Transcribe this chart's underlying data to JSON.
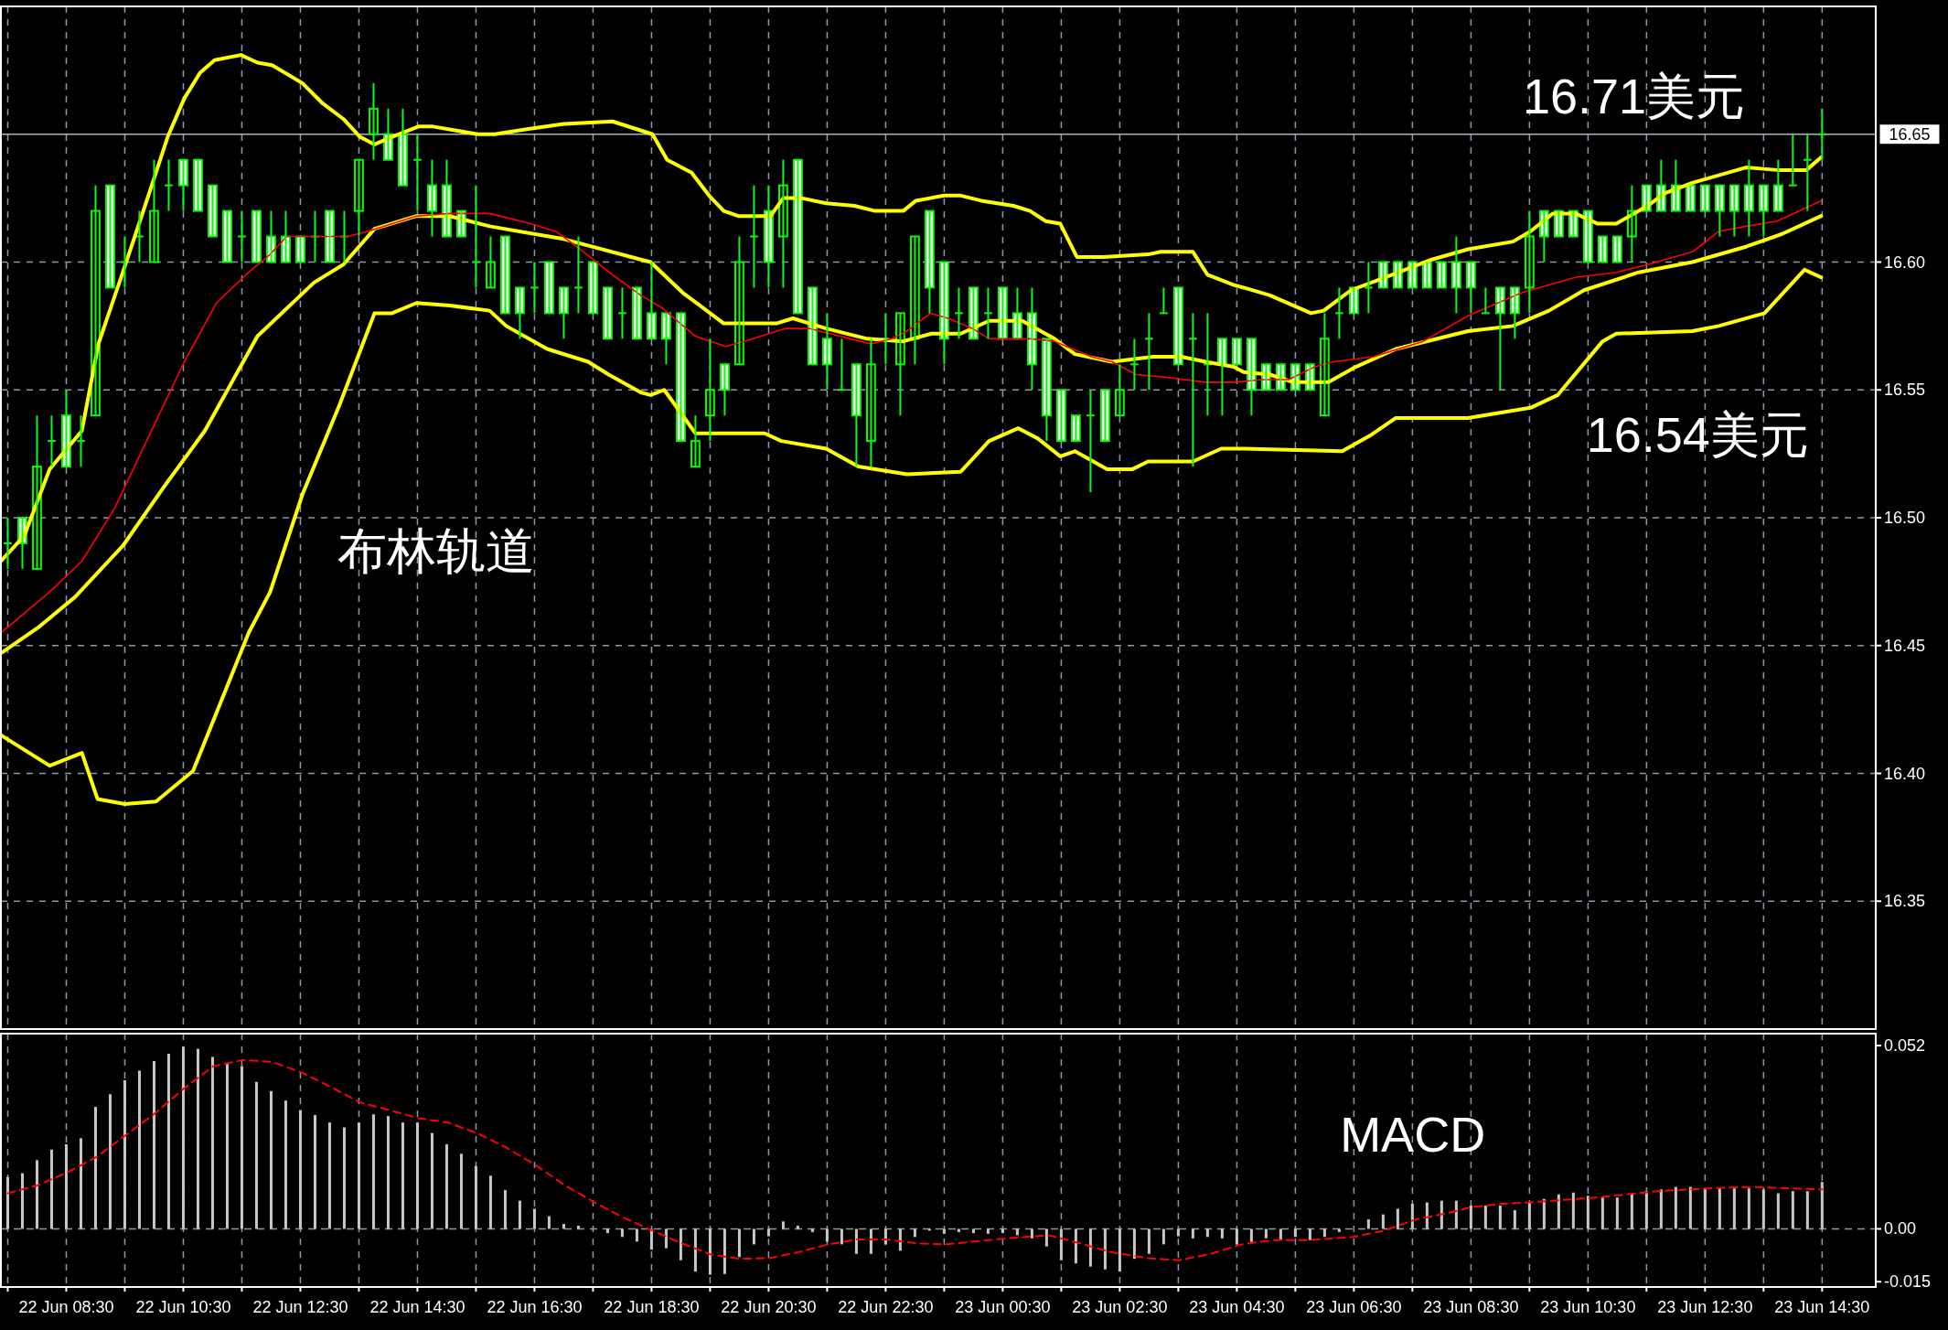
{
  "chart_data": [
    {
      "type": "candlestick",
      "color": "#00ff00",
      "tick_labels": "y",
      "grid": true,
      "xlim": [
        "--06-22T07:23",
        "--06-23T15:25"
      ],
      "ylim": [
        16.3,
        16.7
      ],
      "yticks": [
        16.35,
        {
          "value": 16.4,
          "label": "16.40"
        },
        16.45,
        {
          "value": 16.5,
          "label": "16.50"
        },
        16.55,
        {
          "value": 16.6,
          "label": "16.60"
        }
      ],
      "xticks": [
        "--06-22T07:30",
        "--06-22T08:30",
        "--06-22T09:30",
        "--06-22T10:30",
        "--06-22T11:30",
        "--06-22T12:30",
        "--06-22T13:30",
        "--06-22T14:30",
        "--06-22T15:30",
        "--06-22T16:30",
        "--06-22T17:30",
        "--06-22T18:30",
        "--06-22T19:30",
        "--06-22T20:30",
        "--06-22T21:30",
        "--06-22T22:30",
        "--06-22T23:30",
        "--06-23T00:30",
        "--06-23T01:30",
        "--06-23T02:30",
        "--06-23T03:30",
        "--06-23T04:30",
        "--06-23T05:30",
        "--06-23T06:30",
        "--06-23T07:30",
        "--06-23T08:30",
        "--06-23T09:30",
        "--06-23T10:30",
        "--06-23T11:30",
        "--06-23T12:30",
        "--06-23T13:30",
        "--06-23T14:30"
      ],
      "ref_lines": [
        {
          "axis": "y",
          "value": 16.65,
          "label": "16.65",
          "color": "#a8b4c0",
          "line_style": "solid"
        }
      ],
      "annotations": [
        "布林轨道",
        "16.71美元",
        "16.54美元"
      ],
      "x": [
        "--06-22T07:30",
        "--06-22T07:45",
        "--06-22T08:00",
        "--06-22T08:15",
        "--06-22T08:30",
        "--06-22T08:45",
        "--06-22T09:00",
        "--06-22T09:15",
        "--06-22T09:30",
        "--06-22T09:45",
        "--06-22T10:00",
        "--06-22T10:15",
        "--06-22T10:30",
        "--06-22T10:45",
        "--06-22T11:00",
        "--06-22T11:15",
        "--06-22T11:30",
        "--06-22T11:45",
        "--06-22T12:00",
        "--06-22T12:15",
        "--06-22T12:30",
        "--06-22T12:45",
        "--06-22T13:00",
        "--06-22T13:15",
        "--06-22T13:30",
        "--06-22T13:45",
        "--06-22T14:00",
        "--06-22T14:15",
        "--06-22T14:30",
        "--06-22T14:45",
        "--06-22T15:00",
        "--06-22T15:15",
        "--06-22T15:30",
        "--06-22T15:45",
        "--06-22T16:00",
        "--06-22T16:15",
        "--06-22T16:30",
        "--06-22T16:45",
        "--06-22T17:00",
        "--06-22T17:15",
        "--06-22T17:30",
        "--06-22T17:45",
        "--06-22T18:00",
        "--06-22T18:15",
        "--06-22T18:30",
        "--06-22T18:45",
        "--06-22T19:00",
        "--06-22T19:15",
        "--06-22T19:30",
        "--06-22T19:45",
        "--06-22T20:00",
        "--06-22T20:15",
        "--06-22T20:30",
        "--06-22T20:45",
        "--06-22T21:00",
        "--06-22T21:15",
        "--06-22T21:30",
        "--06-22T21:45",
        "--06-22T22:00",
        "--06-22T22:15",
        "--06-22T22:30",
        "--06-22T22:45",
        "--06-22T23:00",
        "--06-22T23:15",
        "--06-22T23:30",
        "--06-22T23:45",
        "--06-23T00:00",
        "--06-23T00:15",
        "--06-23T00:30",
        "--06-23T00:45",
        "--06-23T01:00",
        "--06-23T01:15",
        "--06-23T01:30",
        "--06-23T01:45",
        "--06-23T02:00",
        "--06-23T02:15",
        "--06-23T02:30",
        "--06-23T02:45",
        "--06-23T03:00",
        "--06-23T03:15",
        "--06-23T03:30",
        "--06-23T03:45",
        "--06-23T04:00",
        "--06-23T04:15",
        "--06-23T04:30",
        "--06-23T04:45",
        "--06-23T05:00",
        "--06-23T05:15",
        "--06-23T05:30",
        "--06-23T05:45",
        "--06-23T06:00",
        "--06-23T06:15",
        "--06-23T06:30",
        "--06-23T06:45",
        "--06-23T07:00",
        "--06-23T07:15",
        "--06-23T07:30",
        "--06-23T07:45",
        "--06-23T08:00",
        "--06-23T08:15",
        "--06-23T08:30",
        "--06-23T08:45",
        "--06-23T09:00",
        "--06-23T09:15",
        "--06-23T09:30",
        "--06-23T09:45",
        "--06-23T10:00",
        "--06-23T10:15",
        "--06-23T10:30",
        "--06-23T10:45",
        "--06-23T11:00",
        "--06-23T11:15",
        "--06-23T11:30",
        "--06-23T11:45",
        "--06-23T12:00",
        "--06-23T12:15",
        "--06-23T12:30",
        "--06-23T12:45",
        "--06-23T13:00",
        "--06-23T13:15",
        "--06-23T13:30",
        "--06-23T13:45",
        "--06-23T14:00",
        "--06-23T14:15",
        "--06-23T14:30"
      ],
      "ohlc": [
        [
          16.49,
          16.5,
          16.48,
          16.49
        ],
        [
          16.5,
          16.5,
          16.48,
          16.49
        ],
        [
          16.48,
          16.54,
          16.48,
          16.52
        ],
        [
          16.53,
          16.54,
          16.52,
          16.53
        ],
        [
          16.54,
          16.55,
          16.52,
          16.52
        ],
        [
          16.53,
          16.54,
          16.52,
          16.53
        ],
        [
          16.54,
          16.63,
          16.54,
          16.62
        ],
        [
          16.63,
          16.63,
          16.59,
          16.59
        ],
        [
          16.6,
          16.61,
          16.59,
          16.6
        ],
        [
          16.61,
          16.62,
          16.6,
          16.61
        ],
        [
          16.6,
          16.64,
          16.6,
          16.62
        ],
        [
          16.63,
          16.64,
          16.62,
          16.63
        ],
        [
          16.64,
          16.64,
          16.62,
          16.63
        ],
        [
          16.64,
          16.64,
          16.62,
          16.62
        ],
        [
          16.63,
          16.63,
          16.61,
          16.61
        ],
        [
          16.62,
          16.62,
          16.6,
          16.6
        ],
        [
          16.61,
          16.62,
          16.6,
          16.61
        ],
        [
          16.62,
          16.62,
          16.6,
          16.6
        ],
        [
          16.61,
          16.62,
          16.6,
          16.6
        ],
        [
          16.61,
          16.62,
          16.6,
          16.6
        ],
        [
          16.61,
          16.61,
          16.6,
          16.6
        ],
        [
          16.61,
          16.62,
          16.6,
          16.61
        ],
        [
          16.62,
          16.62,
          16.6,
          16.6
        ],
        [
          16.61,
          16.62,
          16.6,
          16.61
        ],
        [
          16.62,
          16.64,
          16.61,
          16.64
        ],
        [
          16.65,
          16.67,
          16.64,
          16.66
        ],
        [
          16.65,
          16.66,
          16.64,
          16.64
        ],
        [
          16.65,
          16.66,
          16.63,
          16.63
        ],
        [
          16.64,
          16.65,
          16.62,
          16.64
        ],
        [
          16.63,
          16.64,
          16.61,
          16.62
        ],
        [
          16.63,
          16.64,
          16.61,
          16.61
        ],
        [
          16.62,
          16.62,
          16.61,
          16.61
        ],
        [
          16.6,
          16.63,
          16.59,
          16.6
        ],
        [
          16.59,
          16.61,
          16.59,
          16.6
        ],
        [
          16.61,
          16.61,
          16.58,
          16.58
        ],
        [
          16.59,
          16.59,
          16.57,
          16.58
        ],
        [
          16.59,
          16.6,
          16.58,
          16.59
        ],
        [
          16.6,
          16.6,
          16.58,
          16.58
        ],
        [
          16.59,
          16.59,
          16.57,
          16.58
        ],
        [
          16.59,
          16.61,
          16.58,
          16.59
        ],
        [
          16.6,
          16.6,
          16.58,
          16.58
        ],
        [
          16.59,
          16.59,
          16.57,
          16.57
        ],
        [
          16.58,
          16.59,
          16.57,
          16.58
        ],
        [
          16.59,
          16.59,
          16.57,
          16.57
        ],
        [
          16.58,
          16.6,
          16.57,
          16.57
        ],
        [
          16.58,
          16.58,
          16.56,
          16.57
        ],
        [
          16.58,
          16.58,
          16.53,
          16.53
        ],
        [
          16.52,
          16.54,
          16.52,
          16.53
        ],
        [
          16.54,
          16.57,
          16.53,
          16.55
        ],
        [
          16.56,
          16.56,
          16.54,
          16.55
        ],
        [
          16.56,
          16.61,
          16.56,
          16.6
        ],
        [
          16.61,
          16.63,
          16.59,
          16.61
        ],
        [
          16.62,
          16.63,
          16.59,
          16.6
        ],
        [
          16.61,
          16.64,
          16.59,
          16.63
        ],
        [
          16.64,
          16.64,
          16.58,
          16.58
        ],
        [
          16.59,
          16.59,
          16.56,
          16.56
        ],
        [
          16.57,
          16.58,
          16.55,
          16.56
        ],
        [
          16.55,
          16.57,
          16.55,
          16.55
        ],
        [
          16.56,
          16.56,
          16.52,
          16.54
        ],
        [
          16.53,
          16.57,
          16.52,
          16.56
        ],
        [
          16.57,
          16.58,
          16.56,
          16.57
        ],
        [
          16.56,
          16.58,
          16.54,
          16.58
        ],
        [
          16.57,
          16.61,
          16.56,
          16.61
        ],
        [
          16.62,
          16.62,
          16.58,
          16.59
        ],
        [
          16.6,
          16.6,
          16.56,
          16.57
        ],
        [
          16.58,
          16.59,
          16.57,
          16.58
        ],
        [
          16.59,
          16.59,
          16.57,
          16.57
        ],
        [
          16.58,
          16.59,
          16.57,
          16.58
        ],
        [
          16.59,
          16.59,
          16.57,
          16.57
        ],
        [
          16.58,
          16.59,
          16.57,
          16.57
        ],
        [
          16.58,
          16.59,
          16.55,
          16.56
        ],
        [
          16.57,
          16.57,
          16.53,
          16.54
        ],
        [
          16.55,
          16.55,
          16.53,
          16.53
        ],
        [
          16.54,
          16.54,
          16.53,
          16.53
        ],
        [
          16.54,
          16.55,
          16.51,
          16.54
        ],
        [
          16.55,
          16.55,
          16.53,
          16.53
        ],
        [
          16.54,
          16.56,
          16.54,
          16.55
        ],
        [
          16.56,
          16.57,
          16.55,
          16.56
        ],
        [
          16.57,
          16.58,
          16.55,
          16.57
        ],
        [
          16.58,
          16.59,
          16.58,
          16.58
        ],
        [
          16.59,
          16.59,
          16.56,
          16.56
        ],
        [
          16.57,
          16.58,
          16.52,
          16.57
        ],
        [
          16.56,
          16.58,
          16.54,
          16.56
        ],
        [
          16.57,
          16.57,
          16.54,
          16.56
        ],
        [
          16.57,
          16.57,
          16.56,
          16.56
        ],
        [
          16.57,
          16.57,
          16.54,
          16.55
        ],
        [
          16.56,
          16.56,
          16.55,
          16.55
        ],
        [
          16.56,
          16.56,
          16.55,
          16.55
        ],
        [
          16.56,
          16.56,
          16.55,
          16.55
        ],
        [
          16.56,
          16.56,
          16.55,
          16.55
        ],
        [
          16.54,
          16.58,
          16.54,
          16.57
        ],
        [
          16.58,
          16.59,
          16.57,
          16.58
        ],
        [
          16.59,
          16.59,
          16.58,
          16.58
        ],
        [
          16.59,
          16.6,
          16.58,
          16.59
        ],
        [
          16.6,
          16.6,
          16.59,
          16.59
        ],
        [
          16.6,
          16.6,
          16.59,
          16.59
        ],
        [
          16.6,
          16.6,
          16.59,
          16.59
        ],
        [
          16.6,
          16.6,
          16.59,
          16.59
        ],
        [
          16.6,
          16.6,
          16.59,
          16.59
        ],
        [
          16.6,
          16.61,
          16.58,
          16.59
        ],
        [
          16.6,
          16.6,
          16.58,
          16.59
        ],
        [
          16.58,
          16.59,
          16.58,
          16.58
        ],
        [
          16.59,
          16.59,
          16.55,
          16.58
        ],
        [
          16.59,
          16.59,
          16.57,
          16.58
        ],
        [
          16.59,
          16.62,
          16.58,
          16.61
        ],
        [
          16.62,
          16.62,
          16.6,
          16.61
        ],
        [
          16.62,
          16.62,
          16.61,
          16.61
        ],
        [
          16.62,
          16.62,
          16.61,
          16.61
        ],
        [
          16.62,
          16.62,
          16.6,
          16.6
        ],
        [
          16.61,
          16.61,
          16.6,
          16.6
        ],
        [
          16.61,
          16.61,
          16.6,
          16.6
        ],
        [
          16.61,
          16.63,
          16.6,
          16.62
        ],
        [
          16.63,
          16.63,
          16.62,
          16.62
        ],
        [
          16.63,
          16.64,
          16.62,
          16.62
        ],
        [
          16.63,
          16.64,
          16.62,
          16.62
        ],
        [
          16.63,
          16.63,
          16.62,
          16.62
        ],
        [
          16.63,
          16.63,
          16.62,
          16.62
        ],
        [
          16.63,
          16.63,
          16.61,
          16.62
        ],
        [
          16.63,
          16.63,
          16.61,
          16.62
        ],
        [
          16.63,
          16.64,
          16.61,
          16.62
        ],
        [
          16.63,
          16.63,
          16.61,
          16.62
        ],
        [
          16.63,
          16.64,
          16.62,
          16.62
        ],
        [
          16.63,
          16.65,
          16.63,
          16.63
        ],
        [
          16.64,
          16.65,
          16.62,
          16.64
        ],
        [
          16.65,
          16.66,
          16.64,
          16.65
        ]
      ],
      "series": [
        {
          "type": "line",
          "color": "#ffff00",
          "x": [
            "--06-22T07:23",
            "--06-22T07:47",
            "--06-22T08:13",
            "--06-22T08:46",
            "--06-22T09:03",
            "--06-22T09:28",
            "--06-22T09:49",
            "--06-22T10:14",
            "--06-22T10:31",
            "--06-22T10:47",
            "--06-22T11:02",
            "--06-22T11:29",
            "--06-22T11:46",
            "--06-22T12:01",
            "--06-22T12:32",
            "--06-22T12:53",
            "--06-22T13:14",
            "--06-22T13:31",
            "--06-22T13:46",
            "--06-22T14:04",
            "--06-22T14:31",
            "--06-22T14:46",
            "--06-22T15:32",
            "--06-22T15:49",
            "--06-22T16:22",
            "--06-22T17:00",
            "--06-22T17:50",
            "--06-22T18:31",
            "--06-22T18:46",
            "--06-22T19:11",
            "--06-22T19:29",
            "--06-22T19:44",
            "--06-22T19:59",
            "--06-22T20:32",
            "--06-22T20:45",
            "--06-22T21:04",
            "--06-22T21:29",
            "--06-22T21:58",
            "--06-22T22:19",
            "--06-22T22:48",
            "--06-22T23:01",
            "--06-22T23:30",
            "--06-22T23:47",
            "--06-23T00:08",
            "--06-23T00:41",
            "--06-23T00:58",
            "--06-23T01:14",
            "--06-23T01:29",
            "--06-23T01:46",
            "--06-23T02:13",
            "--06-23T02:59",
            "--06-23T03:12",
            "--06-23T03:45",
            "--06-23T04:00",
            "--06-23T04:27",
            "--06-23T04:37",
            "--06-23T05:04",
            "--06-23T05:46",
            "--06-23T05:59",
            "--06-23T06:27",
            "--06-23T06:55",
            "--06-23T07:50",
            "--06-23T08:27",
            "--06-23T09:13",
            "--06-23T09:31",
            "--06-23T09:54",
            "--06-23T10:17",
            "--06-23T10:40",
            "--06-23T10:59",
            "--06-23T11:31",
            "--06-23T11:49",
            "--06-23T12:17",
            "--06-23T13:12",
            "--06-23T13:44",
            "--06-23T14:14",
            "--06-23T14:29"
          ],
          "values": [
            16.483,
            16.493,
            16.519,
            16.534,
            16.568,
            16.596,
            16.62,
            16.649,
            16.664,
            16.674,
            16.679,
            16.681,
            16.678,
            16.677,
            16.67,
            16.662,
            16.656,
            16.649,
            16.646,
            16.649,
            16.653,
            16.653,
            16.65,
            16.65,
            16.652,
            16.654,
            16.655,
            16.65,
            16.64,
            16.635,
            16.626,
            16.62,
            16.618,
            16.618,
            16.625,
            16.625,
            16.623,
            16.622,
            16.62,
            16.62,
            16.624,
            16.626,
            16.626,
            16.624,
            16.622,
            16.62,
            16.616,
            16.615,
            16.602,
            16.602,
            16.603,
            16.604,
            16.604,
            16.595,
            16.591,
            16.59,
            16.587,
            16.58,
            16.581,
            16.589,
            16.593,
            16.601,
            16.605,
            16.608,
            16.612,
            16.619,
            16.619,
            16.615,
            16.615,
            16.622,
            16.627,
            16.631,
            16.637,
            16.636,
            16.636,
            16.641
          ]
        },
        {
          "type": "line",
          "color": "#ffff00",
          "x": [
            "--06-22T07:23",
            "--06-22T08:01",
            "--06-22T08:39",
            "--06-22T09:28",
            "--06-22T10:10",
            "--06-22T10:52",
            "--06-22T11:46",
            "--06-22T12:44",
            "--06-22T13:14",
            "--06-22T13:46",
            "--06-22T14:29",
            "--06-22T15:03",
            "--06-22T15:44",
            "--06-22T17:00",
            "--06-22T18:19",
            "--06-22T18:29",
            "--06-22T19:02",
            "--06-22T19:44",
            "--06-22T20:38",
            "--06-22T20:55",
            "--06-22T21:12",
            "--06-22T21:29",
            "--06-22T22:11",
            "--06-22T22:48",
            "--06-22T23:17",
            "--06-22T23:47",
            "--06-23T00:16",
            "--06-23T00:50",
            "--06-23T01:23",
            "--06-23T01:44",
            "--06-23T02:22",
            "--06-23T03:04",
            "--06-23T03:33",
            "--06-23T03:58",
            "--06-23T04:27",
            "--06-23T04:37",
            "--06-23T05:04",
            "--06-23T05:28",
            "--06-23T06:04",
            "--06-23T06:32",
            "--06-23T07:13",
            "--06-23T08:27",
            "--06-23T09:13",
            "--06-23T09:50",
            "--06-23T10:26",
            "--06-23T11:22",
            "--06-23T12:17",
            "--06-23T13:12",
            "--06-23T13:49",
            "--06-23T14:29"
          ],
          "values": [
            16.447,
            16.457,
            16.469,
            16.489,
            16.512,
            16.534,
            16.571,
            16.592,
            16.599,
            16.613,
            16.618,
            16.618,
            16.614,
            16.609,
            16.601,
            16.6,
            16.588,
            16.576,
            16.576,
            16.578,
            16.576,
            16.574,
            16.57,
            16.569,
            16.572,
            16.572,
            16.577,
            16.577,
            16.57,
            16.564,
            16.561,
            16.563,
            16.563,
            16.561,
            16.559,
            16.557,
            16.556,
            16.553,
            16.553,
            16.559,
            16.566,
            16.573,
            16.575,
            16.581,
            16.589,
            16.596,
            16.6,
            16.606,
            16.611,
            16.618
          ]
        },
        {
          "type": "line",
          "color": "#ffff00",
          "x": [
            "--06-22T07:23",
            "--06-22T08:13",
            "--06-22T08:46",
            "--06-22T09:02",
            "--06-22T09:30",
            "--06-22T10:02",
            "--06-22T10:40",
            "--06-22T11:37",
            "--06-22T11:59",
            "--06-22T12:32",
            "--06-22T13:10",
            "--06-22T13:46",
            "--06-22T14:04",
            "--06-22T14:29",
            "--06-22T15:03",
            "--06-22T15:44",
            "--06-22T16:01",
            "--06-22T16:43",
            "--06-22T17:25",
            "--06-22T17:46",
            "--06-22T18:19",
            "--06-22T18:29",
            "--06-22T18:43",
            "--06-22T19:15",
            "--06-22T20:01",
            "--06-22T20:26",
            "--06-22T20:43",
            "--06-22T21:29",
            "--06-22T22:02",
            "--06-22T22:52",
            "--06-22T23:47",
            "--06-23T00:16",
            "--06-23T00:46",
            "--06-23T01:06",
            "--06-23T01:29",
            "--06-23T01:44",
            "--06-23T02:17",
            "--06-23T02:43",
            "--06-23T02:59",
            "--06-23T03:45",
            "--06-23T04:14",
            "--06-23T04:37",
            "--06-23T06:18",
            "--06-23T06:46",
            "--06-23T07:13",
            "--06-23T08:27",
            "--06-23T09:31",
            "--06-23T09:59",
            "--06-23T10:45",
            "--06-23T10:59",
            "--06-23T12:17",
            "--06-23T12:44",
            "--06-23T13:31",
            "--06-23T14:12",
            "--06-23T14:29"
          ],
          "values": [
            16.415,
            16.403,
            16.408,
            16.39,
            16.388,
            16.389,
            16.401,
            16.455,
            16.471,
            16.509,
            16.544,
            16.58,
            16.58,
            16.584,
            16.583,
            16.581,
            16.575,
            16.566,
            16.561,
            16.556,
            16.549,
            16.548,
            16.55,
            16.533,
            16.533,
            16.533,
            16.53,
            16.527,
            16.52,
            16.517,
            16.518,
            16.53,
            16.535,
            16.531,
            16.524,
            16.526,
            16.519,
            16.519,
            16.522,
            16.522,
            16.527,
            16.527,
            16.526,
            16.532,
            16.539,
            16.539,
            16.543,
            16.548,
            16.569,
            16.572,
            16.573,
            16.575,
            16.58,
            16.597,
            16.594
          ]
        },
        {
          "type": "line",
          "color": "#ff0000",
          "x": [
            "--06-22T07:23",
            "--06-22T08:13",
            "--06-22T08:46",
            "--06-22T09:20",
            "--06-22T10:01",
            "--06-22T10:31",
            "--06-22T11:04",
            "--06-22T11:34",
            "--06-22T11:59",
            "--06-22T12:16",
            "--06-22T13:18",
            "--06-22T13:39",
            "--06-22T14:29",
            "--06-22T15:03",
            "--06-22T15:44",
            "--06-22T16:26",
            "--06-22T16:52",
            "--06-22T17:17",
            "--06-22T17:50",
            "--06-22T18:19",
            "--06-22T18:41",
            "--06-22T19:15",
            "--06-22T19:46",
            "--06-22T20:05",
            "--06-22T20:47",
            "--06-22T21:12",
            "--06-22T21:54",
            "--06-22T22:15",
            "--06-22T22:36",
            "--06-22T22:52",
            "--06-22T23:16",
            "--06-22T23:34",
            "--06-22T23:59",
            "--06-23T00:16",
            "--06-23T00:37",
            "--06-23T00:58",
            "--06-23T01:23",
            "--06-23T02:01",
            "--06-23T02:22",
            "--06-23T02:47",
            "--06-23T03:16",
            "--06-23T03:58",
            "--06-23T04:27",
            "--06-23T04:56",
            "--06-23T05:23",
            "--06-23T05:50",
            "--06-23T06:09",
            "--06-23T06:50",
            "--06-23T07:41",
            "--06-23T08:27",
            "--06-23T09:22",
            "--06-23T10:17",
            "--06-23T10:59",
            "--06-23T11:31",
            "--06-23T12:17",
            "--06-23T12:44",
            "--06-23T13:12",
            "--06-23T13:44",
            "--06-23T14:29"
          ],
          "values": [
            16.455,
            16.471,
            16.483,
            16.504,
            16.537,
            16.561,
            16.584,
            16.595,
            16.603,
            16.61,
            16.61,
            16.612,
            16.618,
            16.619,
            16.619,
            16.615,
            16.612,
            16.605,
            16.595,
            16.587,
            16.582,
            16.571,
            16.567,
            16.569,
            16.574,
            16.574,
            16.57,
            16.568,
            16.57,
            16.573,
            16.58,
            16.578,
            16.574,
            16.57,
            16.57,
            16.57,
            16.569,
            16.563,
            16.561,
            16.556,
            16.555,
            16.553,
            16.553,
            16.554,
            16.554,
            16.559,
            16.561,
            16.563,
            16.569,
            16.579,
            16.588,
            16.594,
            16.596,
            16.599,
            16.604,
            16.612,
            16.614,
            16.616,
            16.624
          ]
        }
      ]
    },
    {
      "type": "bar",
      "color": "#c8c8c8",
      "grid": "x",
      "xlim": [
        "--06-22T07:23",
        "--06-23T15:25"
      ],
      "ylim": [
        -0.0165,
        0.0554
      ],
      "yticks": [
        {
          "value": 0.052,
          "label": "0.052"
        },
        {
          "value": 0,
          "label": "0.00"
        },
        {
          "value": -0.015,
          "label": "-0.015"
        }
      ],
      "xticks": [
        {
          "value": "--06-22T07:30",
          "label": null
        },
        {
          "value": "--06-22T08:30",
          "label": "22 Jun 08:30"
        },
        {
          "value": "--06-22T09:30",
          "label": null
        },
        {
          "value": "--06-22T10:30",
          "label": "22 Jun 10:30"
        },
        {
          "value": "--06-22T11:30",
          "label": null
        },
        {
          "value": "--06-22T12:30",
          "label": "22 Jun 12:30"
        },
        {
          "value": "--06-22T13:30",
          "label": null
        },
        {
          "value": "--06-22T14:30",
          "label": "22 Jun 14:30"
        },
        {
          "value": "--06-22T15:30",
          "label": null
        },
        {
          "value": "--06-22T16:30",
          "label": "22 Jun 16:30"
        },
        {
          "value": "--06-22T17:30",
          "label": null
        },
        {
          "value": "--06-22T18:30",
          "label": "22 Jun 18:30"
        },
        {
          "value": "--06-22T19:30",
          "label": null
        },
        {
          "value": "--06-22T20:30",
          "label": "22 Jun 20:30"
        },
        {
          "value": "--06-22T21:30",
          "label": null
        },
        {
          "value": "--06-22T22:30",
          "label": "22 Jun 22:30"
        },
        {
          "value": "--06-22T23:30",
          "label": null
        },
        {
          "value": "--06-23T00:30",
          "label": "23 Jun 00:30"
        },
        {
          "value": "--06-23T01:30",
          "label": null
        },
        {
          "value": "--06-23T02:30",
          "label": "23 Jun 02:30"
        },
        {
          "value": "--06-23T03:30",
          "label": null
        },
        {
          "value": "--06-23T04:30",
          "label": "23 Jun 04:30"
        },
        {
          "value": "--06-23T05:30",
          "label": null
        },
        {
          "value": "--06-23T06:30",
          "label": "23 Jun 06:30"
        },
        {
          "value": "--06-23T07:30",
          "label": null
        },
        {
          "value": "--06-23T08:30",
          "label": "23 Jun 08:30"
        },
        {
          "value": "--06-23T09:30",
          "label": null
        },
        {
          "value": "--06-23T10:30",
          "label": "23 Jun 10:30"
        },
        {
          "value": "--06-23T11:30",
          "label": null
        },
        {
          "value": "--06-23T12:30",
          "label": "23 Jun 12:30"
        },
        {
          "value": "--06-23T13:30",
          "label": null
        },
        {
          "value": "--06-23T14:30",
          "label": "23 Jun 14:30"
        }
      ],
      "ref_lines": [
        {
          "axis": "y",
          "value": 0,
          "color": "#8a9aaa",
          "line_style": "dashed"
        }
      ],
      "annotations": [
        "MACD"
      ],
      "x": [
        "--06-22T07:30",
        "--06-22T07:45",
        "--06-22T08:00",
        "--06-22T08:15",
        "--06-22T08:30",
        "--06-22T08:45",
        "--06-22T09:00",
        "--06-22T09:15",
        "--06-22T09:30",
        "--06-22T09:45",
        "--06-22T10:00",
        "--06-22T10:15",
        "--06-22T10:30",
        "--06-22T10:45",
        "--06-22T11:00",
        "--06-22T11:15",
        "--06-22T11:30",
        "--06-22T11:45",
        "--06-22T12:00",
        "--06-22T12:15",
        "--06-22T12:30",
        "--06-22T12:45",
        "--06-22T13:00",
        "--06-22T13:15",
        "--06-22T13:30",
        "--06-22T13:45",
        "--06-22T14:00",
        "--06-22T14:15",
        "--06-22T14:30",
        "--06-22T14:45",
        "--06-22T15:00",
        "--06-22T15:15",
        "--06-22T15:30",
        "--06-22T15:45",
        "--06-22T16:00",
        "--06-22T16:15",
        "--06-22T16:30",
        "--06-22T16:45",
        "--06-22T17:00",
        "--06-22T17:15",
        "--06-22T17:30",
        "--06-22T17:45",
        "--06-22T18:00",
        "--06-22T18:15",
        "--06-22T18:30",
        "--06-22T18:45",
        "--06-22T19:00",
        "--06-22T19:15",
        "--06-22T19:30",
        "--06-22T19:45",
        "--06-22T20:00",
        "--06-22T20:15",
        "--06-22T20:30",
        "--06-22T20:45",
        "--06-22T21:00",
        "--06-22T21:15",
        "--06-22T21:30",
        "--06-22T21:45",
        "--06-22T22:00",
        "--06-22T22:15",
        "--06-22T22:30",
        "--06-22T22:45",
        "--06-22T23:00",
        "--06-22T23:15",
        "--06-22T23:30",
        "--06-22T23:45",
        "--06-23T00:00",
        "--06-23T00:15",
        "--06-23T00:30",
        "--06-23T00:45",
        "--06-23T01:00",
        "--06-23T01:15",
        "--06-23T01:30",
        "--06-23T01:45",
        "--06-23T02:00",
        "--06-23T02:15",
        "--06-23T02:30",
        "--06-23T02:45",
        "--06-23T03:00",
        "--06-23T03:15",
        "--06-23T03:30",
        "--06-23T03:45",
        "--06-23T04:00",
        "--06-23T04:15",
        "--06-23T04:30",
        "--06-23T04:45",
        "--06-23T05:00",
        "--06-23T05:15",
        "--06-23T05:30",
        "--06-23T05:45",
        "--06-23T06:00",
        "--06-23T06:15",
        "--06-23T06:30",
        "--06-23T06:45",
        "--06-23T07:00",
        "--06-23T07:15",
        "--06-23T07:30",
        "--06-23T07:45",
        "--06-23T08:00",
        "--06-23T08:15",
        "--06-23T08:30",
        "--06-23T08:45",
        "--06-23T09:00",
        "--06-23T09:15",
        "--06-23T09:30",
        "--06-23T09:45",
        "--06-23T10:00",
        "--06-23T10:15",
        "--06-23T10:30",
        "--06-23T10:45",
        "--06-23T11:00",
        "--06-23T11:15",
        "--06-23T11:30",
        "--06-23T11:45",
        "--06-23T12:00",
        "--06-23T12:15",
        "--06-23T12:30",
        "--06-23T12:45",
        "--06-23T13:00",
        "--06-23T13:15",
        "--06-23T13:30",
        "--06-23T13:45",
        "--06-23T14:00",
        "--06-23T14:15",
        "--06-23T14:30"
      ],
      "values": [
        0.0147,
        0.0158,
        0.0195,
        0.0225,
        0.024,
        0.0257,
        0.0346,
        0.0382,
        0.0422,
        0.0449,
        0.0476,
        0.0497,
        0.0517,
        0.0511,
        0.0488,
        0.047,
        0.0462,
        0.0417,
        0.0391,
        0.0364,
        0.0337,
        0.0323,
        0.0302,
        0.0288,
        0.0302,
        0.0325,
        0.032,
        0.0302,
        0.0302,
        0.0272,
        0.024,
        0.0213,
        0.0178,
        0.0151,
        0.011,
        0.008,
        0.0057,
        0.0036,
        0.0014,
        0.0009,
        null,
        -0.0012,
        -0.0023,
        -0.0036,
        -0.0059,
        -0.0055,
        -0.0089,
        -0.0121,
        -0.013,
        -0.0128,
        -0.008,
        -0.0044,
        -0.0021,
        0.0021,
        0.0009,
        -0.0009,
        -0.0036,
        -0.0044,
        -0.0071,
        -0.0071,
        -0.0044,
        -0.0062,
        -0.0023,
        -0.0005,
        -0.0014,
        -0.0009,
        -0.0012,
        -0.0014,
        -0.0012,
        -0.0018,
        -0.0027,
        -0.005,
        -0.0089,
        -0.0098,
        -0.0107,
        -0.0115,
        -0.0121,
        -0.0085,
        -0.0071,
        -0.0044,
        -0.0021,
        -0.0027,
        -0.0023,
        -0.0027,
        -0.0044,
        -0.0037,
        -0.0027,
        -0.003,
        -0.0023,
        -0.0032,
        -0.0023,
        -0.0009,
        null,
        0.0027,
        0.0041,
        0.0057,
        0.0071,
        0.0075,
        0.008,
        0.008,
        0.0066,
        0.0066,
        0.0066,
        0.0053,
        0.0076,
        0.0085,
        0.0098,
        0.0103,
        0.0094,
        0.0089,
        0.0089,
        0.0101,
        0.0107,
        0.0112,
        0.0119,
        0.0119,
        0.0115,
        0.0115,
        0.0115,
        0.0115,
        0.0112,
        0.0101,
        0.0107,
        0.0107,
        0.0133
      ],
      "series": [
        {
          "type": "line",
          "color": "#ff0000",
          "line_style": "dashed",
          "x": [
            "--06-22T07:30",
            "--06-22T08:01",
            "--06-22T08:31",
            "--06-22T09:01",
            "--06-22T09:31",
            "--06-22T10:01",
            "--06-22T10:31",
            "--06-22T11:01",
            "--06-22T11:31",
            "--06-22T12:01",
            "--06-22T12:31",
            "--06-22T13:01",
            "--06-22T13:31",
            "--06-22T14:01",
            "--06-22T14:31",
            "--06-22T15:01",
            "--06-22T15:31",
            "--06-22T16:01",
            "--06-22T16:31",
            "--06-22T17:01",
            "--06-22T17:31",
            "--06-22T18:01",
            "--06-22T18:31",
            "--06-22T19:01",
            "--06-22T19:31",
            "--06-22T20:00",
            "--06-22T20:31",
            "--06-22T21:01",
            "--06-22T21:31",
            "--06-22T22:01",
            "--06-22T22:31",
            "--06-22T23:01",
            "--06-22T23:31",
            "--06-23T00:01",
            "--06-23T00:33",
            "--06-23T01:17",
            "--06-23T01:49",
            "--06-23T02:21",
            "--06-23T02:59",
            "--06-23T03:31",
            "--06-23T04:03",
            "--06-23T04:35",
            "--06-23T05:07",
            "--06-23T05:45",
            "--06-23T06:29",
            "--06-23T07:01",
            "--06-23T07:34",
            "--06-23T08:05",
            "--06-23T08:31",
            "--06-23T09:02",
            "--06-23T09:35",
            "--06-23T10:38",
            "--06-23T11:42",
            "--06-23T12:33",
            "--06-23T13:17",
            "--06-23T14:30"
          ],
          "values": [
            0.0101,
            0.0124,
            0.016,
            0.0204,
            0.0266,
            0.0328,
            0.0399,
            0.0462,
            0.0479,
            0.0474,
            0.0444,
            0.0403,
            0.0359,
            0.0337,
            0.0314,
            0.0302,
            0.0272,
            0.0231,
            0.0181,
            0.0124,
            0.0076,
            0.0032,
            -0.0005,
            -0.0041,
            -0.0073,
            -0.0085,
            -0.0083,
            -0.0066,
            -0.0044,
            -0.003,
            -0.003,
            -0.0041,
            -0.0044,
            -0.0036,
            -0.0027,
            -0.0018,
            -0.0041,
            -0.0066,
            -0.0083,
            -0.0089,
            -0.0071,
            -0.0044,
            -0.0032,
            -0.0032,
            -0.0023,
            -0.0005,
            0.0027,
            0.0044,
            0.0062,
            0.0071,
            0.0076,
            0.0089,
            0.0107,
            0.0115,
            0.0119,
            0.0112
          ]
        }
      ]
    }
  ]
}
